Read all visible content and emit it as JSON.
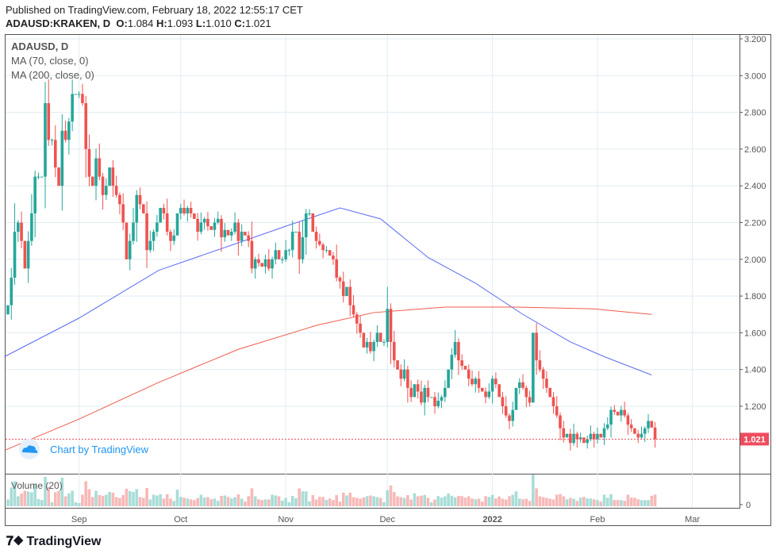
{
  "header": {
    "published": "Published on TradingView.com, February 18, 2022 12:55:17 CET",
    "symbol": "ADAUSD:KRAKEN, D",
    "o_label": "O:",
    "o": "1.084",
    "h_label": "H:",
    "h": "1.093",
    "l_label": "L:",
    "l": "1.010",
    "c_label": "C:",
    "c": "1.021"
  },
  "legend": {
    "title": "ADAUSD, D",
    "ma70": "MA (70, close, 0)",
    "ma200": "MA (200, close, 0)",
    "volume": "Volume (20)"
  },
  "watermark": "Chart by TradingView",
  "brand": "TradingView",
  "last_price_label": "1.021",
  "colors": {
    "up": "#26a69a",
    "down": "#ef5350",
    "ma70": "#5b6bf0",
    "ma200": "#f05a4a",
    "last": "#ee4d5f"
  },
  "chart_data": {
    "type": "candlestick",
    "start_date": "2021-08-11",
    "y_ticks": [
      "3.200",
      "3.000",
      "2.800",
      "2.600",
      "2.400",
      "2.200",
      "2.000",
      "1.800",
      "1.600",
      "1.400",
      "1.200"
    ],
    "ylim": [
      0.92,
      3.2
    ],
    "volume_tick": "0",
    "x_ticks": [
      {
        "label": "Sep",
        "day": 21
      },
      {
        "label": "Oct",
        "day": 51
      },
      {
        "label": "Nov",
        "day": 82
      },
      {
        "label": "Dec",
        "day": 112
      },
      {
        "label": "2022",
        "day": 143
      },
      {
        "label": "Feb",
        "day": 174
      },
      {
        "label": "Mar",
        "day": 202
      }
    ],
    "first_open": 1.7,
    "closes": [
      1.75,
      1.9,
      2.15,
      2.2,
      2.1,
      1.95,
      2.1,
      2.25,
      2.45,
      2.45,
      2.45,
      2.85,
      2.65,
      2.65,
      2.5,
      2.4,
      2.7,
      2.65,
      2.75,
      2.9,
      2.9,
      2.9,
      2.85,
      2.6,
      2.45,
      2.4,
      2.55,
      2.45,
      2.35,
      2.4,
      2.5,
      2.4,
      2.35,
      2.3,
      2.2,
      2.0,
      2.1,
      2.2,
      2.35,
      2.3,
      2.25,
      2.05,
      2.1,
      2.15,
      2.2,
      2.28,
      2.25,
      2.15,
      2.1,
      2.13,
      2.25,
      2.28,
      2.25,
      2.28,
      2.25,
      2.22,
      2.15,
      2.2,
      2.22,
      2.18,
      2.16,
      2.2,
      2.22,
      2.12,
      2.16,
      2.13,
      2.15,
      2.2,
      2.1,
      2.15,
      2.13,
      2.1,
      1.95,
      2.0,
      1.98,
      1.96,
      2.0,
      1.95,
      2.0,
      2.05,
      2.0,
      2.0,
      2.05,
      2.05,
      2.15,
      2.15,
      2.0,
      2.12,
      2.25,
      2.25,
      2.15,
      2.1,
      2.08,
      2.05,
      2.05,
      2.02,
      2.0,
      1.9,
      1.88,
      1.8,
      1.85,
      1.75,
      1.7,
      1.65,
      1.6,
      1.52,
      1.55,
      1.5,
      1.55,
      1.6,
      1.55,
      1.55,
      1.73,
      1.55,
      1.45,
      1.4,
      1.35,
      1.4,
      1.3,
      1.25,
      1.32,
      1.28,
      1.22,
      1.3,
      1.25,
      1.25,
      1.2,
      1.23,
      1.25,
      1.3,
      1.4,
      1.48,
      1.55,
      1.45,
      1.42,
      1.4,
      1.35,
      1.32,
      1.35,
      1.3,
      1.28,
      1.25,
      1.28,
      1.35,
      1.32,
      1.25,
      1.2,
      1.15,
      1.12,
      1.18,
      1.3,
      1.33,
      1.3,
      1.25,
      1.22,
      1.6,
      1.45,
      1.4,
      1.35,
      1.3,
      1.25,
      1.2,
      1.15,
      1.08,
      1.03,
      1.05,
      1.0,
      1.05,
      1.02,
      1.03,
      1.0,
      1.02,
      1.05,
      1.02,
      1.05,
      1.03,
      1.08,
      1.1,
      1.18,
      1.17,
      1.15,
      1.18,
      1.15,
      1.1,
      1.08,
      1.05,
      1.03,
      1.05,
      1.08,
      1.12,
      1.084,
      1.021
    ],
    "ma70": [
      [
        -1,
        1.47
      ],
      [
        21,
        1.68
      ],
      [
        44.5,
        1.94
      ],
      [
        68,
        2.09
      ],
      [
        82,
        2.18
      ],
      [
        98,
        2.28
      ],
      [
        110,
        2.22
      ],
      [
        124,
        2.01
      ],
      [
        138,
        1.87
      ],
      [
        152,
        1.7
      ],
      [
        166,
        1.55
      ],
      [
        176,
        1.47
      ],
      [
        190,
        1.37
      ]
    ],
    "ma200": [
      [
        -1,
        0.96
      ],
      [
        21,
        1.13
      ],
      [
        44.5,
        1.33
      ],
      [
        68,
        1.51
      ],
      [
        91,
        1.64
      ],
      [
        108,
        1.71
      ],
      [
        129,
        1.74
      ],
      [
        150,
        1.74
      ],
      [
        173,
        1.73
      ],
      [
        190,
        1.7
      ]
    ]
  }
}
